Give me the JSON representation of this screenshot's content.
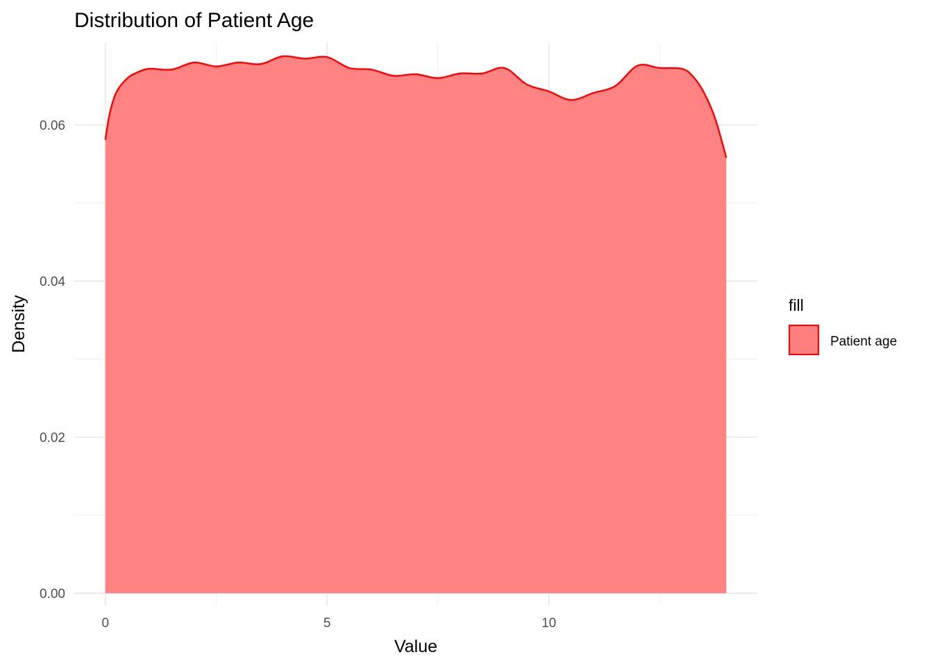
{
  "chart_data": {
    "type": "area",
    "title": "Distribution of Patient Age",
    "xlabel": "Value",
    "ylabel": "Density",
    "xlim": [
      -0.7,
      14.7
    ],
    "ylim": [
      -0.0015,
      0.0705
    ],
    "x_ticks": [
      0,
      5,
      10
    ],
    "x_tick_labels": [
      "0",
      "5",
      "10"
    ],
    "x_minor_ticks": [
      2.5,
      7.5,
      12.5
    ],
    "y_ticks": [
      0.0,
      0.02,
      0.04,
      0.06
    ],
    "y_tick_labels": [
      "0.00",
      "0.02",
      "0.04",
      "0.06"
    ],
    "y_minor_ticks": [
      0.01,
      0.03,
      0.05
    ],
    "grid": true,
    "legend": {
      "title": "fill",
      "position": "right",
      "entries": [
        "Patient age"
      ]
    },
    "series": [
      {
        "name": "Patient age",
        "fill_color": "#ff7f7f",
        "line_color": "#ff0000",
        "x": [
          0,
          0.1,
          0.25,
          0.5,
          0.75,
          1.0,
          1.5,
          2.0,
          2.5,
          3.0,
          3.5,
          4.0,
          4.5,
          5.0,
          5.5,
          6.0,
          6.5,
          7.0,
          7.5,
          8.0,
          8.5,
          9.0,
          9.5,
          10.0,
          10.5,
          11.0,
          11.5,
          12.0,
          12.5,
          13.0,
          13.25,
          13.5,
          13.75,
          14.0
        ],
        "y": [
          0.0581,
          0.0615,
          0.0642,
          0.066,
          0.0668,
          0.0672,
          0.0671,
          0.068,
          0.0675,
          0.068,
          0.0678,
          0.0688,
          0.0685,
          0.0687,
          0.0673,
          0.0671,
          0.0663,
          0.0665,
          0.066,
          0.0666,
          0.0666,
          0.0673,
          0.0652,
          0.0643,
          0.0632,
          0.0641,
          0.065,
          0.0676,
          0.0673,
          0.0672,
          0.0662,
          0.0641,
          0.0608,
          0.0558
        ]
      }
    ]
  }
}
